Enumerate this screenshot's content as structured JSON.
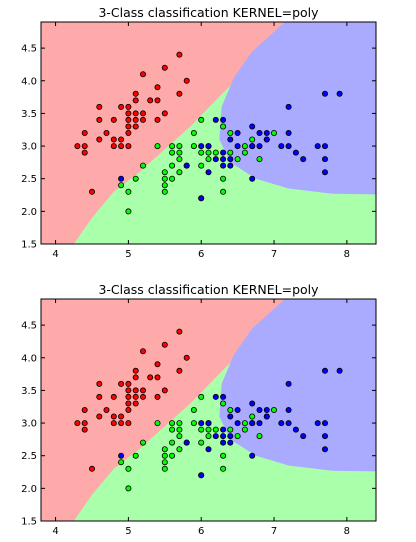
{
  "chart_data": [
    {
      "type": "scatter",
      "title": "3-Class classification KERNEL=poly",
      "xlabel": "",
      "ylabel": "",
      "xlim": [
        3.8,
        8.4
      ],
      "ylim": [
        1.5,
        4.9
      ],
      "xticks": [
        4,
        5,
        6,
        7,
        8
      ],
      "yticks": [
        1.5,
        2.0,
        2.5,
        3.0,
        3.5,
        4.0,
        4.5
      ],
      "grid": false,
      "legend": "none",
      "region_colors": {
        "class_0": "#ffaaaa",
        "class_1": "#aaffaa",
        "class_2": "#aaaaff"
      },
      "series": [
        {
          "color": "#ff0000",
          "points": [
            [
              4.3,
              3.0
            ],
            [
              4.4,
              2.9
            ],
            [
              4.4,
              3.0
            ],
            [
              4.4,
              3.2
            ],
            [
              4.5,
              2.3
            ],
            [
              4.6,
              3.1
            ],
            [
              4.6,
              3.4
            ],
            [
              4.6,
              3.6
            ],
            [
              4.7,
              3.2
            ],
            [
              4.8,
              3.0
            ],
            [
              4.8,
              3.1
            ],
            [
              4.8,
              3.4
            ],
            [
              4.9,
              3.0
            ],
            [
              4.9,
              3.1
            ],
            [
              4.9,
              3.6
            ],
            [
              5.0,
              3.0
            ],
            [
              5.0,
              3.2
            ],
            [
              5.0,
              3.3
            ],
            [
              5.0,
              3.4
            ],
            [
              5.0,
              3.5
            ],
            [
              5.0,
              3.6
            ],
            [
              5.1,
              3.3
            ],
            [
              5.1,
              3.4
            ],
            [
              5.1,
              3.5
            ],
            [
              5.1,
              3.7
            ],
            [
              5.1,
              3.8
            ],
            [
              5.2,
              3.4
            ],
            [
              5.2,
              3.5
            ],
            [
              5.2,
              4.1
            ],
            [
              5.3,
              3.7
            ],
            [
              5.4,
              3.4
            ],
            [
              5.4,
              3.7
            ],
            [
              5.4,
              3.9
            ],
            [
              5.5,
              3.5
            ],
            [
              5.5,
              4.2
            ],
            [
              5.7,
              3.8
            ],
            [
              5.7,
              4.4
            ],
            [
              5.8,
              4.0
            ]
          ]
        },
        {
          "color": "#00ff00",
          "points": [
            [
              4.9,
              2.4
            ],
            [
              5.0,
              2.0
            ],
            [
              5.0,
              2.3
            ],
            [
              5.1,
              2.5
            ],
            [
              5.2,
              2.7
            ],
            [
              5.4,
              3.0
            ],
            [
              5.5,
              2.3
            ],
            [
              5.5,
              2.4
            ],
            [
              5.5,
              2.5
            ],
            [
              5.5,
              2.6
            ],
            [
              5.6,
              2.5
            ],
            [
              5.6,
              2.7
            ],
            [
              5.6,
              2.9
            ],
            [
              5.6,
              3.0
            ],
            [
              5.7,
              2.6
            ],
            [
              5.7,
              2.8
            ],
            [
              5.7,
              2.9
            ],
            [
              5.7,
              3.0
            ],
            [
              5.8,
              2.7
            ],
            [
              5.9,
              3.0
            ],
            [
              5.9,
              3.2
            ],
            [
              6.0,
              2.2
            ],
            [
              6.0,
              2.7
            ],
            [
              6.0,
              2.9
            ],
            [
              6.0,
              3.4
            ],
            [
              6.1,
              2.8
            ],
            [
              6.1,
              2.9
            ],
            [
              6.1,
              3.0
            ],
            [
              6.2,
              2.9
            ],
            [
              6.3,
              2.3
            ],
            [
              6.3,
              2.5
            ],
            [
              6.3,
              3.3
            ],
            [
              6.4,
              2.9
            ],
            [
              6.4,
              3.2
            ],
            [
              6.5,
              2.8
            ],
            [
              6.6,
              2.9
            ],
            [
              6.6,
              3.0
            ],
            [
              6.7,
              3.0
            ],
            [
              6.7,
              3.1
            ],
            [
              6.8,
              2.8
            ],
            [
              6.9,
              3.1
            ],
            [
              7.0,
              3.2
            ]
          ]
        },
        {
          "color": "#0000ff",
          "points": [
            [
              4.9,
              2.5
            ],
            [
              5.8,
              2.7
            ],
            [
              6.0,
              2.2
            ],
            [
              6.0,
              3.0
            ],
            [
              6.1,
              2.6
            ],
            [
              6.1,
              3.0
            ],
            [
              6.2,
              2.8
            ],
            [
              6.2,
              3.4
            ],
            [
              6.3,
              2.7
            ],
            [
              6.3,
              2.8
            ],
            [
              6.3,
              2.9
            ],
            [
              6.3,
              3.4
            ],
            [
              6.4,
              2.7
            ],
            [
              6.4,
              2.8
            ],
            [
              6.4,
              3.1
            ],
            [
              6.5,
              3.0
            ],
            [
              6.5,
              3.2
            ],
            [
              6.7,
              2.5
            ],
            [
              6.7,
              3.0
            ],
            [
              6.7,
              3.3
            ],
            [
              6.8,
              3.0
            ],
            [
              6.8,
              3.2
            ],
            [
              6.9,
              3.1
            ],
            [
              6.9,
              3.2
            ],
            [
              7.1,
              3.0
            ],
            [
              7.2,
              3.0
            ],
            [
              7.2,
              3.2
            ],
            [
              7.2,
              3.6
            ],
            [
              7.3,
              2.9
            ],
            [
              7.4,
              2.8
            ],
            [
              7.6,
              3.0
            ],
            [
              7.7,
              2.6
            ],
            [
              7.7,
              2.8
            ],
            [
              7.7,
              3.0
            ],
            [
              7.7,
              3.8
            ],
            [
              7.9,
              3.8
            ]
          ]
        }
      ]
    },
    {
      "type": "scatter",
      "title": "3-Class classification KERNEL=poly",
      "xlabel": "",
      "ylabel": "",
      "xlim": [
        3.8,
        8.4
      ],
      "ylim": [
        1.5,
        4.9
      ],
      "xticks": [
        4,
        5,
        6,
        7,
        8
      ],
      "yticks": [
        1.5,
        2.0,
        2.5,
        3.0,
        3.5,
        4.0,
        4.5
      ],
      "grid": false,
      "legend": "none",
      "region_colors": {
        "class_0": "#ffaaaa",
        "class_1": "#aaffaa",
        "class_2": "#aaaaff"
      },
      "series": [
        {
          "color": "#ff0000",
          "points": [
            [
              4.3,
              3.0
            ],
            [
              4.4,
              2.9
            ],
            [
              4.4,
              3.0
            ],
            [
              4.4,
              3.2
            ],
            [
              4.5,
              2.3
            ],
            [
              4.6,
              3.1
            ],
            [
              4.6,
              3.4
            ],
            [
              4.6,
              3.6
            ],
            [
              4.7,
              3.2
            ],
            [
              4.8,
              3.0
            ],
            [
              4.8,
              3.1
            ],
            [
              4.8,
              3.4
            ],
            [
              4.9,
              3.0
            ],
            [
              4.9,
              3.1
            ],
            [
              4.9,
              3.6
            ],
            [
              5.0,
              3.0
            ],
            [
              5.0,
              3.2
            ],
            [
              5.0,
              3.3
            ],
            [
              5.0,
              3.4
            ],
            [
              5.0,
              3.5
            ],
            [
              5.0,
              3.6
            ],
            [
              5.1,
              3.3
            ],
            [
              5.1,
              3.4
            ],
            [
              5.1,
              3.5
            ],
            [
              5.1,
              3.7
            ],
            [
              5.1,
              3.8
            ],
            [
              5.2,
              3.4
            ],
            [
              5.2,
              3.5
            ],
            [
              5.2,
              4.1
            ],
            [
              5.3,
              3.7
            ],
            [
              5.4,
              3.4
            ],
            [
              5.4,
              3.7
            ],
            [
              5.4,
              3.9
            ],
            [
              5.5,
              3.5
            ],
            [
              5.5,
              4.2
            ],
            [
              5.7,
              3.8
            ],
            [
              5.7,
              4.4
            ],
            [
              5.8,
              4.0
            ]
          ]
        },
        {
          "color": "#00ff00",
          "points": [
            [
              4.9,
              2.4
            ],
            [
              5.0,
              2.0
            ],
            [
              5.0,
              2.3
            ],
            [
              5.1,
              2.5
            ],
            [
              5.2,
              2.7
            ],
            [
              5.4,
              3.0
            ],
            [
              5.5,
              2.3
            ],
            [
              5.5,
              2.4
            ],
            [
              5.5,
              2.5
            ],
            [
              5.5,
              2.6
            ],
            [
              5.6,
              2.5
            ],
            [
              5.6,
              2.7
            ],
            [
              5.6,
              2.9
            ],
            [
              5.6,
              3.0
            ],
            [
              5.7,
              2.6
            ],
            [
              5.7,
              2.8
            ],
            [
              5.7,
              2.9
            ],
            [
              5.7,
              3.0
            ],
            [
              5.8,
              2.7
            ],
            [
              5.9,
              3.0
            ],
            [
              5.9,
              3.2
            ],
            [
              6.0,
              2.2
            ],
            [
              6.0,
              2.7
            ],
            [
              6.0,
              2.9
            ],
            [
              6.0,
              3.4
            ],
            [
              6.1,
              2.8
            ],
            [
              6.1,
              2.9
            ],
            [
              6.1,
              3.0
            ],
            [
              6.2,
              2.9
            ],
            [
              6.3,
              2.3
            ],
            [
              6.3,
              2.5
            ],
            [
              6.3,
              3.3
            ],
            [
              6.4,
              2.9
            ],
            [
              6.4,
              3.2
            ],
            [
              6.5,
              2.8
            ],
            [
              6.6,
              2.9
            ],
            [
              6.6,
              3.0
            ],
            [
              6.7,
              3.0
            ],
            [
              6.7,
              3.1
            ],
            [
              6.8,
              2.8
            ],
            [
              6.9,
              3.1
            ],
            [
              7.0,
              3.2
            ]
          ]
        },
        {
          "color": "#0000ff",
          "points": [
            [
              4.9,
              2.5
            ],
            [
              5.8,
              2.7
            ],
            [
              6.0,
              2.2
            ],
            [
              6.0,
              3.0
            ],
            [
              6.1,
              2.6
            ],
            [
              6.1,
              3.0
            ],
            [
              6.2,
              2.8
            ],
            [
              6.2,
              3.4
            ],
            [
              6.3,
              2.7
            ],
            [
              6.3,
              2.8
            ],
            [
              6.3,
              2.9
            ],
            [
              6.3,
              3.4
            ],
            [
              6.4,
              2.7
            ],
            [
              6.4,
              2.8
            ],
            [
              6.4,
              3.1
            ],
            [
              6.5,
              3.0
            ],
            [
              6.5,
              3.2
            ],
            [
              6.7,
              2.5
            ],
            [
              6.7,
              3.0
            ],
            [
              6.7,
              3.3
            ],
            [
              6.8,
              3.0
            ],
            [
              6.8,
              3.2
            ],
            [
              6.9,
              3.1
            ],
            [
              6.9,
              3.2
            ],
            [
              7.1,
              3.0
            ],
            [
              7.2,
              3.0
            ],
            [
              7.2,
              3.2
            ],
            [
              7.2,
              3.6
            ],
            [
              7.3,
              2.9
            ],
            [
              7.4,
              2.8
            ],
            [
              7.6,
              3.0
            ],
            [
              7.7,
              2.6
            ],
            [
              7.7,
              2.8
            ],
            [
              7.7,
              3.0
            ],
            [
              7.7,
              3.8
            ],
            [
              7.9,
              3.8
            ]
          ]
        }
      ]
    }
  ]
}
